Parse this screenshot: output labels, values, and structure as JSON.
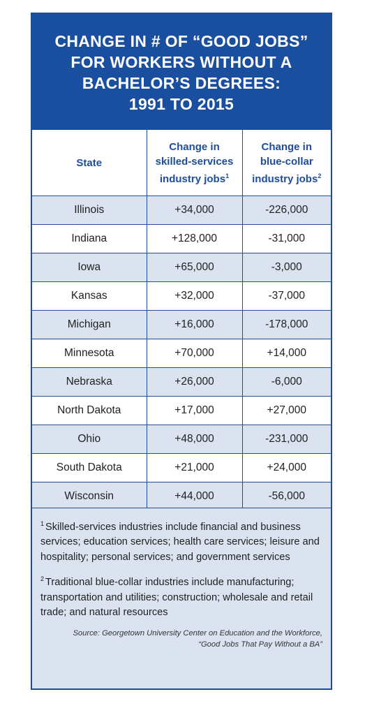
{
  "title": {
    "lines": [
      "CHANGE IN # OF “GOOD JOBS”",
      "FOR WORKERS WITHOUT A",
      "BACHELOR’S DEGREES:",
      "1991 TO 2015"
    ]
  },
  "table": {
    "headers": {
      "state": "State",
      "skilled_line1": "Change in",
      "skilled_line2": "skilled-services",
      "skilled_line3": "industry jobs",
      "skilled_sup": "1",
      "blue_line1": "Change in",
      "blue_line2": "blue-collar",
      "blue_line3": "industry jobs",
      "blue_sup": "2"
    },
    "rows": [
      {
        "state": "Illinois",
        "skilled": "+34,000",
        "blue": "-226,000"
      },
      {
        "state": "Indiana",
        "skilled": "+128,000",
        "blue": "-31,000"
      },
      {
        "state": "Iowa",
        "skilled": "+65,000",
        "blue": "-3,000"
      },
      {
        "state": "Kansas",
        "skilled": "+32,000",
        "blue": "-37,000"
      },
      {
        "state": "Michigan",
        "skilled": "+16,000",
        "blue": "-178,000"
      },
      {
        "state": "Minnesota",
        "skilled": "+70,000",
        "blue": "+14,000"
      },
      {
        "state": "Nebraska",
        "skilled": "+26,000",
        "blue": "-6,000"
      },
      {
        "state": "North Dakota",
        "skilled": "+17,000",
        "blue": "+27,000"
      },
      {
        "state": "Ohio",
        "skilled": "+48,000",
        "blue": "-231,000"
      },
      {
        "state": "South Dakota",
        "skilled": "+21,000",
        "blue": "+24,000"
      },
      {
        "state": "Wisconsin",
        "skilled": "+44,000",
        "blue": "-56,000"
      }
    ]
  },
  "notes": {
    "note1_marker": "1",
    "note1_text": "Skilled-services industries include financial and business services; education services; health care services; leisure and hospitality; personal services; and government services",
    "note2_marker": "2",
    "note2_text": "Traditional blue-collar industries include manufacturing; transportation and utilities; construction; wholesale and retail trade; and natural resources",
    "source_line1": "Source: Georgetown University Center on Education and the Workforce,",
    "source_line2": "“Good Jobs That Pay Without a BA”"
  },
  "colors": {
    "brand_blue": "#1a4e9e",
    "row_shade": "#dce3f0"
  }
}
